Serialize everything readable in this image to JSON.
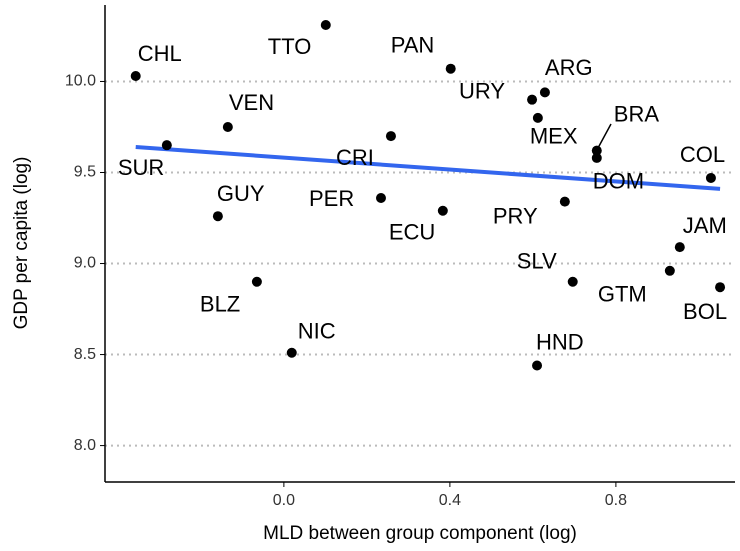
{
  "chart_data": {
    "type": "scatter",
    "x_label": "MLD between group component (log)",
    "y_label": "GDP per capita (log)",
    "xlim": [
      -0.431,
      1.087
    ],
    "ylim": [
      7.8,
      10.42
    ],
    "xticks": [
      {
        "value": 0,
        "label": "0.0"
      },
      0.4,
      0.8
    ],
    "yticks": [
      {
        "value": 8,
        "label": "8.0"
      },
      8.5,
      {
        "value": 9,
        "label": "9.0"
      },
      9.5,
      {
        "value": 10,
        "label": "10.0"
      }
    ],
    "grid": "y",
    "series": [
      {
        "color": "#000000",
        "labels": [
          "CHL",
          "TTO",
          "PAN",
          "URY",
          "ARG",
          "MEX",
          "BRA",
          "DOM",
          "COL",
          "VEN",
          "SUR",
          "CRI",
          "PER",
          "ECU",
          "PRY",
          "GUY",
          "JAM",
          "GTM",
          "SLV",
          "BOL",
          "BLZ",
          "NIC",
          "HND"
        ],
        "x": [
          -0.357,
          0.101,
          0.402,
          0.598,
          0.629,
          0.612,
          0.754,
          0.754,
          1.029,
          -0.135,
          -0.282,
          0.258,
          0.234,
          0.383,
          0.677,
          -0.159,
          0.954,
          0.93,
          0.696,
          1.051,
          -0.065,
          0.019,
          0.61
        ],
        "values": [
          10.03,
          10.31,
          10.07,
          9.9,
          9.94,
          9.8,
          9.62,
          9.58,
          9.47,
          9.75,
          9.65,
          9.7,
          9.36,
          9.29,
          9.34,
          9.26,
          9.09,
          8.96,
          8.9,
          8.87,
          8.9,
          8.51,
          8.44
        ]
      }
    ],
    "trend": {
      "color": "#3366ee",
      "x": [
        -0.357,
        1.051
      ],
      "values": [
        9.64,
        9.41
      ]
    }
  }
}
